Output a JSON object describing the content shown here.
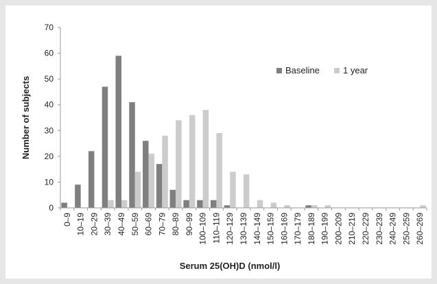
{
  "chart_data": {
    "type": "bar",
    "xlabel": "Serum 25(OH)D (nmol/l)",
    "ylabel": "Number of subjects",
    "ylim": [
      0,
      70
    ],
    "yticks": [
      0,
      10,
      20,
      30,
      40,
      50,
      60,
      70
    ],
    "grid": false,
    "legend_position": "top-right",
    "categories": [
      "0–9",
      "10–19",
      "20–29",
      "30–39",
      "40–49",
      "50–59",
      "60–69",
      "70–79",
      "80–89",
      "90–99",
      "100–109",
      "110–119",
      "120–129",
      "130–139",
      "140–149",
      "150–159",
      "160–169",
      "170–179",
      "180–189",
      "190–199",
      "200–209",
      "210–219",
      "220–229",
      "230–239",
      "240–249",
      "250–259",
      "260–269"
    ],
    "series": [
      {
        "name": "Baseline",
        "color": "#7f7f7f",
        "values": [
          2,
          9,
          22,
          47,
          59,
          41,
          26,
          17,
          7,
          3,
          3,
          3,
          1,
          0,
          0,
          0,
          0,
          0,
          1,
          0,
          0,
          0,
          0,
          0,
          0,
          0,
          0
        ]
      },
      {
        "name": "1 year",
        "color": "#cccccc",
        "values": [
          0,
          0,
          0,
          3,
          3,
          14,
          21,
          28,
          34,
          36,
          38,
          29,
          14,
          13,
          3,
          2,
          1,
          0,
          1,
          1,
          0,
          0,
          0,
          0,
          0,
          0,
          1
        ]
      }
    ]
  }
}
